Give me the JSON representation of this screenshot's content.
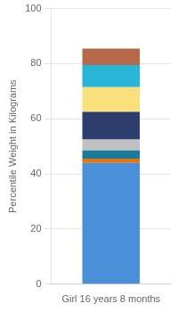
{
  "chart_data": {
    "type": "bar",
    "stacked": true,
    "categories": [
      "Girl 16 years 8 months"
    ],
    "series": [
      {
        "color": "#4a90d9",
        "values": [
          44
        ]
      },
      {
        "color": "#e8720c",
        "values": [
          1.5
        ]
      },
      {
        "color": "#1a7a9a",
        "values": [
          3
        ]
      },
      {
        "color": "#c0c0c0",
        "values": [
          4
        ]
      },
      {
        "color": "#2c3e6b",
        "values": [
          10
        ]
      },
      {
        "color": "#f9e07a",
        "values": [
          9
        ]
      },
      {
        "color": "#29b5d8",
        "values": [
          8
        ]
      },
      {
        "color": "#b5684a",
        "values": [
          6
        ]
      }
    ],
    "ylabel": "Percentile Weight in Kilograms",
    "ylim": [
      0,
      100
    ],
    "yticks": [
      0,
      20,
      40,
      60,
      80,
      100
    ],
    "grid": true
  }
}
